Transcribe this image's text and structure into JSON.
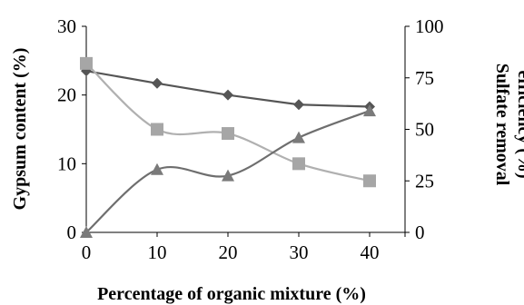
{
  "chart_data": {
    "type": "line",
    "title": "",
    "xlabel": "Percentage of organic mixture (%)",
    "ylabel": "Gypsum content (%)",
    "y2label_lines": [
      "Sulfate removal",
      "efficiency (%)"
    ],
    "x": [
      0,
      10,
      20,
      30,
      40
    ],
    "x_ticks": [
      "0",
      "10",
      "20",
      "30",
      "40"
    ],
    "xlim": [
      0,
      45
    ],
    "ylim": [
      0,
      30
    ],
    "y_ticks": [
      "0",
      "10",
      "20",
      "30"
    ],
    "y2lim": [
      0,
      100
    ],
    "y2_ticks": [
      "0",
      "25",
      "50",
      "75",
      "100"
    ],
    "grid": false,
    "series": [
      {
        "axis": "left",
        "marker": "diamond",
        "color": "#555555",
        "marker_color": "#555555",
        "smooth": false,
        "values": [
          23.5,
          21.7,
          20.0,
          18.6,
          18.3
        ]
      },
      {
        "axis": "left",
        "marker": "square",
        "color": "#b0b0b0",
        "marker_color": "#a6a6a6",
        "smooth": true,
        "values": [
          24.6,
          15.0,
          14.4,
          10.0,
          7.5
        ]
      },
      {
        "axis": "right",
        "marker": "triangle",
        "color": "#6e6e6e",
        "marker_color": "#7a7a7a",
        "smooth": true,
        "values": [
          0,
          30.5,
          27.5,
          46.0,
          59.0
        ]
      }
    ]
  }
}
